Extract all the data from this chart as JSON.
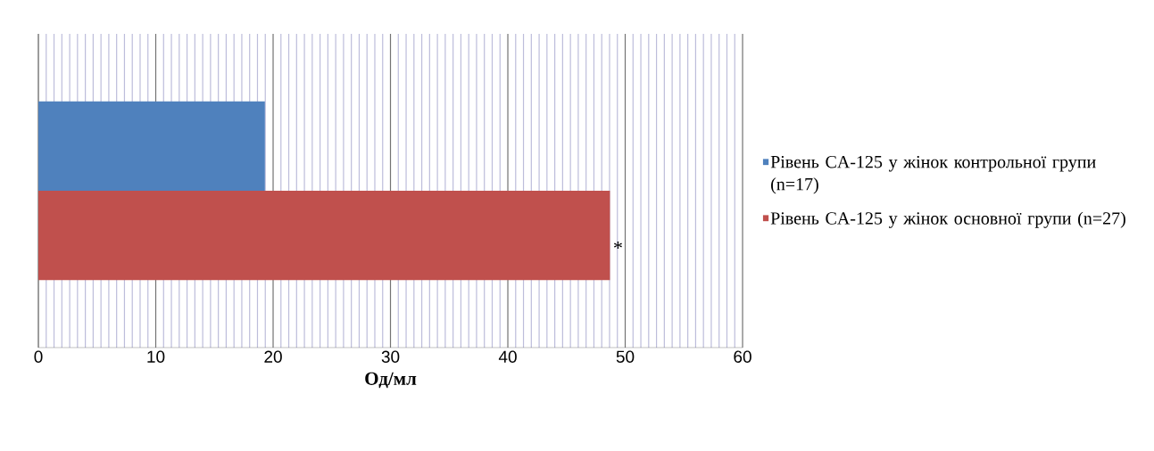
{
  "chart_data": {
    "type": "bar",
    "orientation": "horizontal",
    "categories": [
      null
    ],
    "series": [
      {
        "name": "Рівень CA-125 у жінок контрольної групи (n=17)",
        "color": "#4f81bd",
        "values": [
          19.3
        ]
      },
      {
        "name": "Рівень CA-125 у жінок основної групи (n=27)",
        "color": "#c0504d",
        "values": [
          48.7
        ]
      }
    ],
    "xlabel": "Од/мл",
    "xlim": [
      0,
      60
    ],
    "xticks": [
      0,
      10,
      20,
      30,
      40,
      50,
      60
    ],
    "grid": "x",
    "legend": "right",
    "tick_labels": "x",
    "annotations": [
      {
        "text": "*",
        "x": 48.7
      }
    ]
  }
}
